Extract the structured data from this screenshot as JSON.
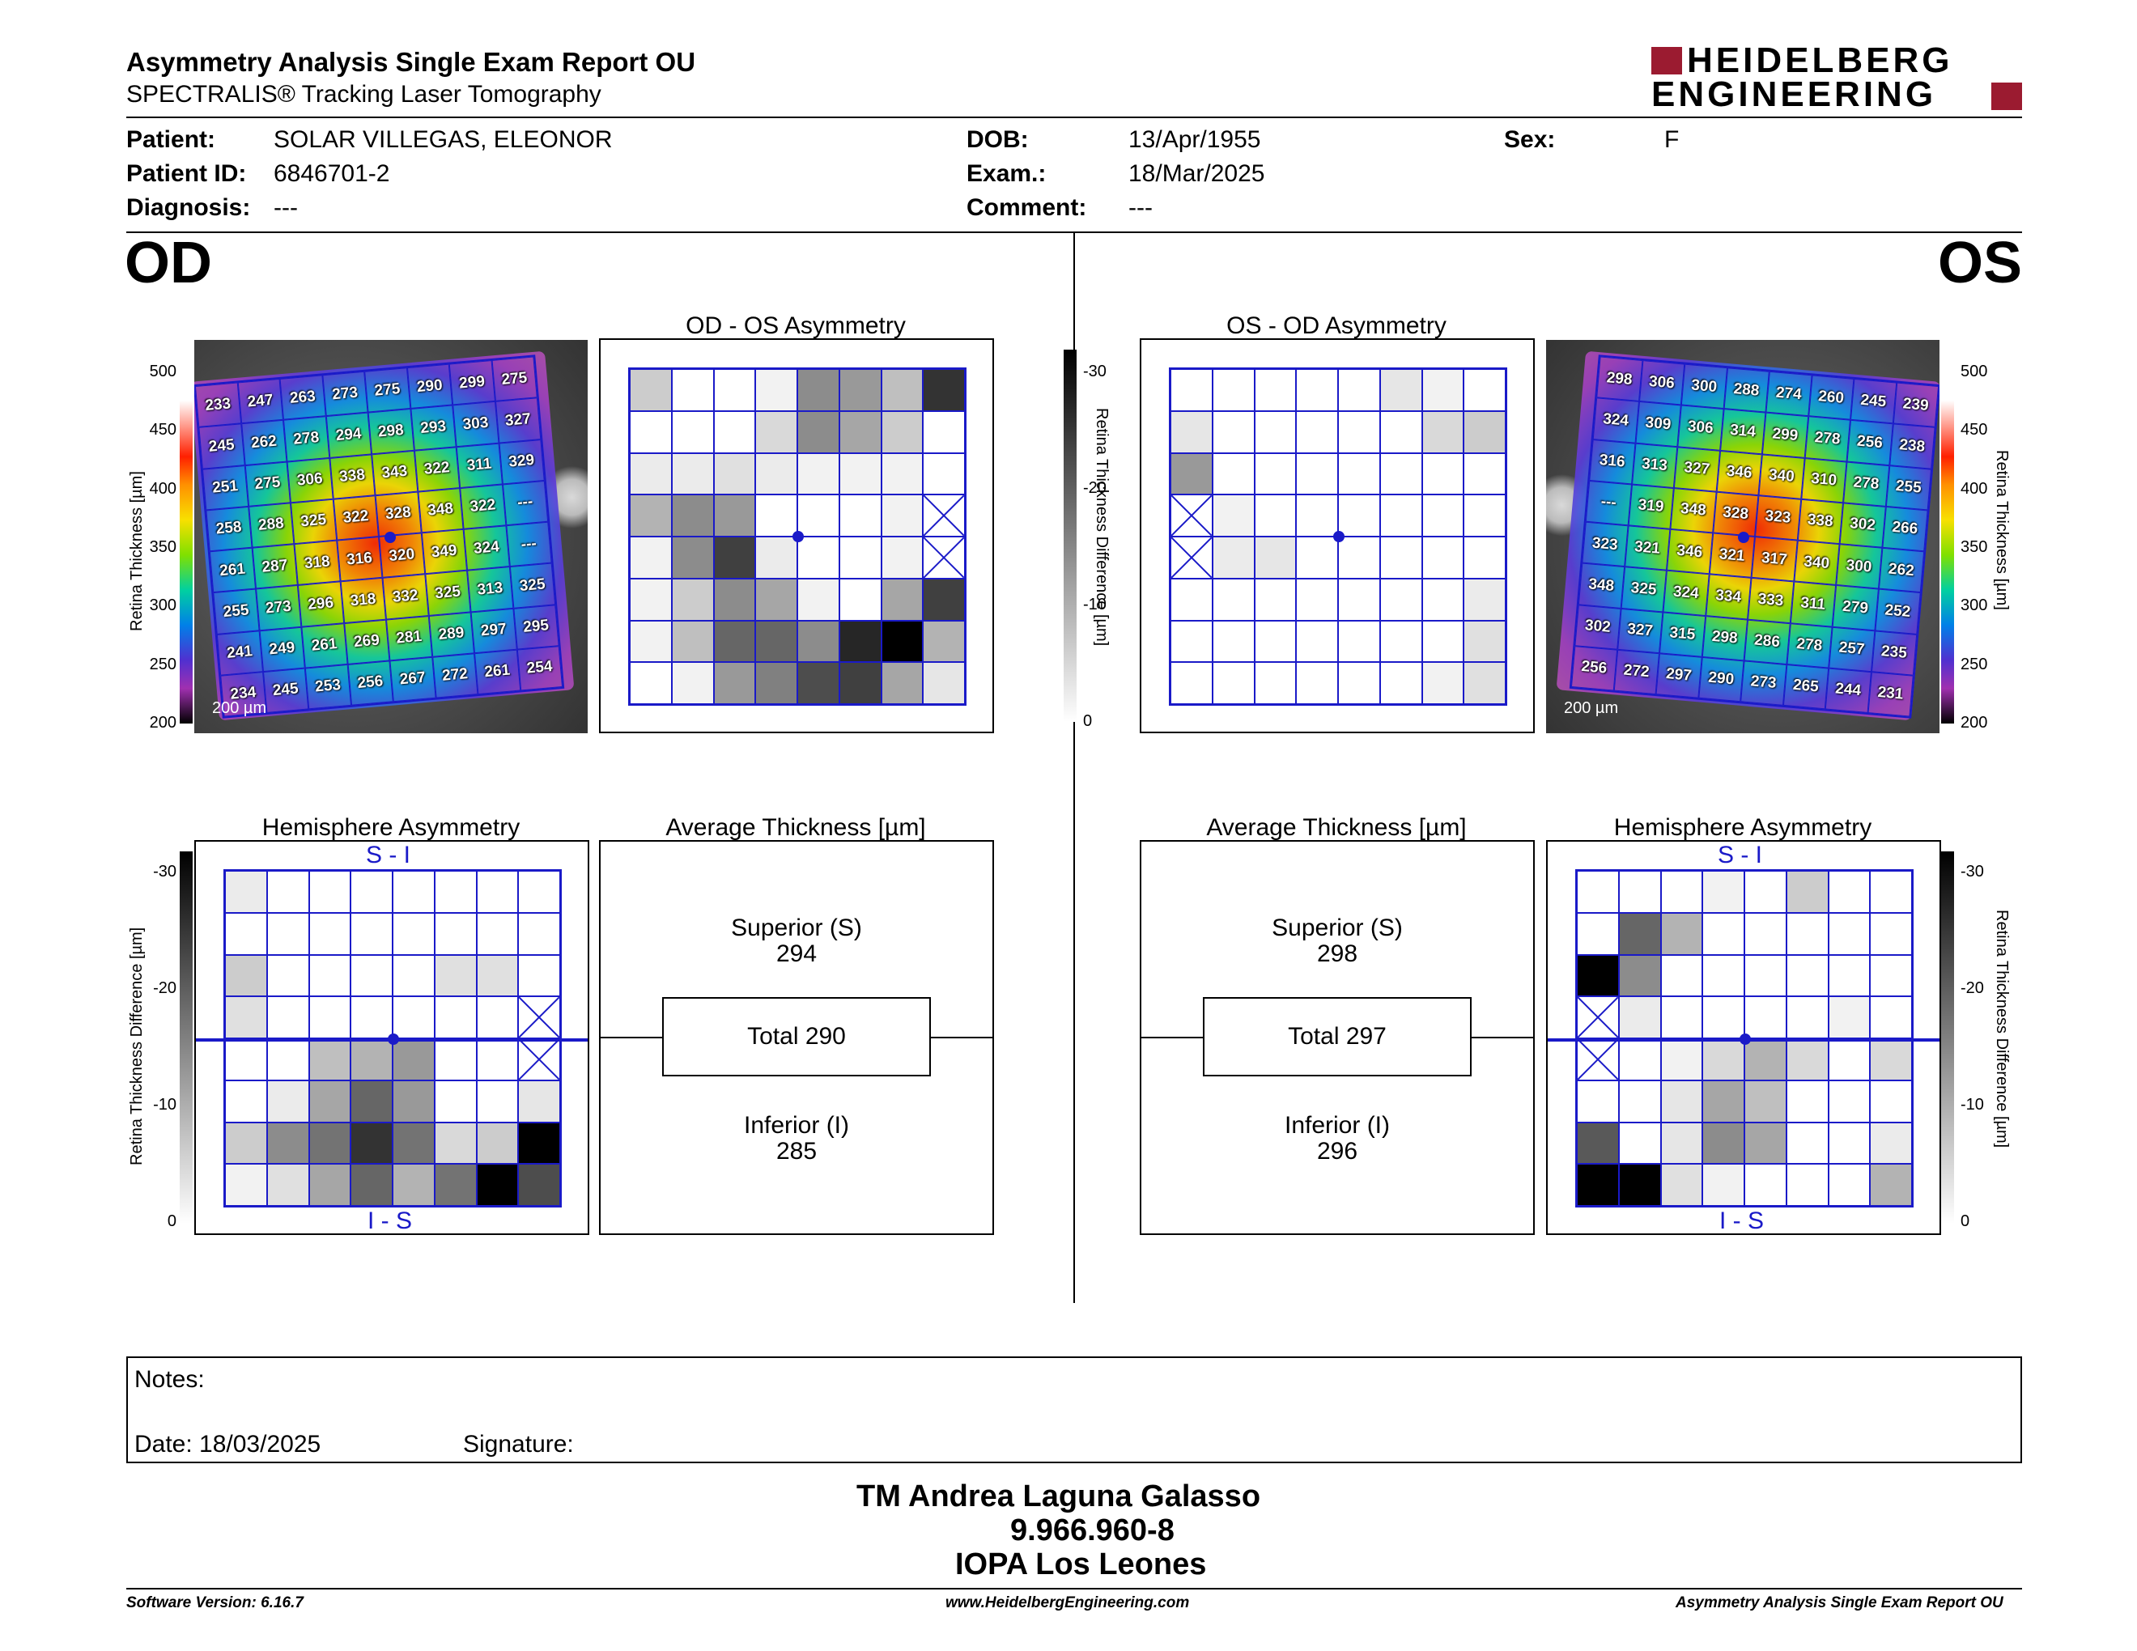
{
  "header": {
    "title": "Asymmetry Analysis Single Exam Report OU",
    "subtitle": "SPECTRALIS® Tracking Laser Tomography",
    "logo_line1": "HEIDELBERG",
    "logo_line2": "ENGINEERING"
  },
  "patient": {
    "patient_label": "Patient:",
    "patient": "SOLAR VILLEGAS, ELEONOR",
    "id_label": "Patient ID:",
    "id": "6846701-2",
    "diagnosis_label": "Diagnosis:",
    "diagnosis": "---",
    "dob_label": "DOB:",
    "dob": "13/Apr/1955",
    "exam_label": "Exam.:",
    "exam": "18/Mar/2025",
    "comment_label": "Comment:",
    "comment": "---",
    "sex_label": "Sex:",
    "sex": "F"
  },
  "od": {
    "eye": "OD",
    "asym_title": "OD - OS Asymmetry",
    "hemi_title": "Hemisphere Asymmetry",
    "avg_title": "Average Thickness [µm]",
    "superior_label": "Superior (S)",
    "superior": "294",
    "total": "Total 290",
    "inferior_label": "Inferior (I)",
    "inferior": "285",
    "scale": "200 µm",
    "si": "S - I",
    "is": "I - S",
    "thickness": [
      [
        "233",
        "247",
        "263",
        "273",
        "275",
        "290",
        "299",
        "275"
      ],
      [
        "245",
        "262",
        "278",
        "294",
        "298",
        "293",
        "303",
        "327"
      ],
      [
        "251",
        "275",
        "306",
        "338",
        "343",
        "322",
        "311",
        "329"
      ],
      [
        "258",
        "288",
        "325",
        "322",
        "328",
        "348",
        "322",
        "---"
      ],
      [
        "261",
        "287",
        "318",
        "316",
        "320",
        "349",
        "324",
        "---"
      ],
      [
        "255",
        "273",
        "296",
        "318",
        "332",
        "325",
        "313",
        "325"
      ],
      [
        "241",
        "249",
        "261",
        "269",
        "281",
        "289",
        "297",
        "295"
      ],
      [
        "234",
        "245",
        "253",
        "256",
        "267",
        "272",
        "261",
        "254"
      ]
    ],
    "asym_gray": [
      [
        0.2,
        0,
        0,
        0.05,
        0.45,
        0.4,
        0.25,
        0.8
      ],
      [
        0,
        0,
        0,
        0.15,
        0.45,
        0.35,
        0.2,
        0
      ],
      [
        0.08,
        0.08,
        0.12,
        0.08,
        0.05,
        0.05,
        0.05,
        0
      ],
      [
        0.3,
        0.45,
        0.4,
        0,
        0,
        0,
        0.05,
        -1
      ],
      [
        0.05,
        0.45,
        0.75,
        0.08,
        0,
        0,
        0.05,
        -1
      ],
      [
        0.05,
        0.2,
        0.45,
        0.35,
        0.05,
        0,
        0.35,
        0.75
      ],
      [
        0.05,
        0.25,
        0.6,
        0.6,
        0.45,
        0.85,
        1,
        0.3
      ],
      [
        0,
        0.05,
        0.4,
        0.5,
        0.7,
        0.75,
        0.35,
        0.1
      ]
    ],
    "hemi_gray": [
      [
        0.08,
        0,
        0,
        0,
        0,
        0,
        0,
        0
      ],
      [
        0,
        0,
        0,
        0,
        0,
        0,
        0,
        0
      ],
      [
        0.2,
        0,
        0,
        0,
        0,
        0.12,
        0.12,
        0
      ],
      [
        0.12,
        0,
        0,
        0,
        0,
        0,
        0,
        -1
      ],
      [
        0,
        0,
        0.25,
        0.3,
        0.4,
        0,
        0,
        -1
      ],
      [
        0,
        0.08,
        0.35,
        0.6,
        0.4,
        0,
        0,
        0.1
      ],
      [
        0.2,
        0.45,
        0.55,
        0.8,
        0.55,
        0.15,
        0.2,
        1
      ],
      [
        0.05,
        0.12,
        0.35,
        0.6,
        0.3,
        0.55,
        1,
        0.7
      ]
    ]
  },
  "os": {
    "eye": "OS",
    "asym_title": "OS - OD Asymmetry",
    "hemi_title": "Hemisphere Asymmetry",
    "avg_title": "Average Thickness [µm]",
    "superior_label": "Superior (S)",
    "superior": "298",
    "total": "Total 297",
    "inferior_label": "Inferior (I)",
    "inferior": "296",
    "scale": "200 µm",
    "si": "S - I",
    "is": "I - S",
    "thickness": [
      [
        "298",
        "306",
        "300",
        "288",
        "274",
        "260",
        "245",
        "239"
      ],
      [
        "324",
        "309",
        "306",
        "314",
        "299",
        "278",
        "256",
        "238"
      ],
      [
        "316",
        "313",
        "327",
        "346",
        "340",
        "310",
        "278",
        "255"
      ],
      [
        "---",
        "319",
        "348",
        "328",
        "323",
        "338",
        "302",
        "266"
      ],
      [
        "323",
        "321",
        "346",
        "321",
        "317",
        "340",
        "300",
        "262"
      ],
      [
        "348",
        "325",
        "324",
        "334",
        "333",
        "311",
        "279",
        "252"
      ],
      [
        "302",
        "327",
        "315",
        "298",
        "286",
        "278",
        "257",
        "235"
      ],
      [
        "256",
        "272",
        "297",
        "290",
        "273",
        "265",
        "244",
        "231"
      ]
    ],
    "asym_gray": [
      [
        0,
        0,
        0,
        0,
        0,
        0.1,
        0.05,
        0
      ],
      [
        0.1,
        0,
        0,
        0,
        0,
        0,
        0.15,
        0.2
      ],
      [
        0.4,
        0,
        0,
        0,
        0,
        0,
        0,
        0
      ],
      [
        -1,
        0.05,
        0,
        0,
        0,
        0,
        0,
        0
      ],
      [
        -1,
        0.08,
        0.1,
        0,
        0,
        0,
        0,
        0
      ],
      [
        0,
        0,
        0,
        0,
        0,
        0,
        0,
        0.08
      ],
      [
        0,
        0,
        0,
        0,
        0,
        0,
        0,
        0.12
      ],
      [
        0,
        0,
        0,
        0,
        0,
        0,
        0.05,
        0.12
      ]
    ],
    "hemi_gray": [
      [
        0,
        0,
        0,
        0.05,
        0,
        0.2,
        0,
        0
      ],
      [
        0,
        0.6,
        0.3,
        0,
        0,
        0,
        0,
        0
      ],
      [
        1,
        0.45,
        0,
        0,
        0,
        0,
        0,
        0
      ],
      [
        -1,
        0.08,
        0,
        0,
        0,
        0,
        0.05,
        0
      ],
      [
        -1,
        0,
        0.05,
        0.15,
        0.3,
        0.15,
        0,
        0.15
      ],
      [
        0,
        0,
        0.1,
        0.35,
        0.25,
        0,
        0,
        0
      ],
      [
        0.65,
        0,
        0.1,
        0.45,
        0.35,
        0,
        0,
        0.08
      ],
      [
        1,
        1,
        0.12,
        0.05,
        0,
        0,
        0,
        0.3
      ]
    ]
  },
  "scales": {
    "thickness_ticks": [
      "500",
      "450",
      "400",
      "350",
      "300",
      "250",
      "200"
    ],
    "thickness_label": "Retina  Thickness [µm]",
    "diff_ticks": [
      "-30",
      "-20",
      "-10",
      "0"
    ],
    "diff_label": "Retina Thickness Difference [µm]"
  },
  "notes": {
    "notes_label": "Notes:",
    "date": "Date: 18/03/2025",
    "signature": "Signature:"
  },
  "signature": {
    "name": "TM Andrea Laguna Galasso",
    "id": "9.966.960-8",
    "org": "IOPA Los Leones"
  },
  "footer": {
    "version": "Software Version: 6.16.7",
    "url": "www.HeidelbergEngineering.com",
    "report": "Asymmetry Analysis Single Exam Report OU"
  },
  "colors": {
    "grid_blue": "#1a1ac8",
    "logo_red": "#9b1b30"
  }
}
